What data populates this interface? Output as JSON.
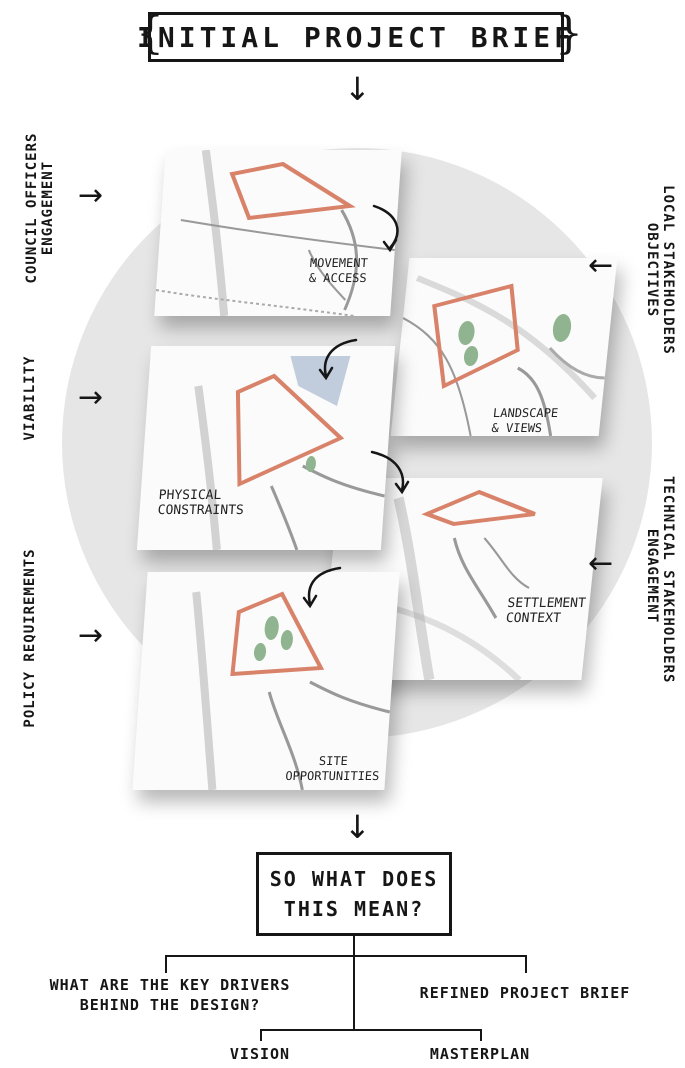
{
  "title": "INITIAL PROJECT BRIEF",
  "left_inputs": [
    {
      "id": "council",
      "lines": [
        "COUNCIL OFFICERS",
        "ENGAGEMENT"
      ]
    },
    {
      "id": "viability",
      "lines": [
        "VIABILITY"
      ]
    },
    {
      "id": "policy",
      "lines": [
        "POLICY REQUIREMENTS"
      ]
    }
  ],
  "right_inputs": [
    {
      "id": "local",
      "lines": [
        "LOCAL STAKEHOLDERS",
        "OBJECTIVES"
      ]
    },
    {
      "id": "technical",
      "lines": [
        "TECHNICAL STAKEHOLDERS",
        "ENGAGEMENT"
      ]
    }
  ],
  "sheets": [
    {
      "id": "movement",
      "label": "MOVEMENT\n& ACCESS"
    },
    {
      "id": "landscape",
      "label": "LANDSCAPE\n& VIEWS"
    },
    {
      "id": "physical",
      "label": "PHYSICAL\nCONSTRAINTS"
    },
    {
      "id": "settlement",
      "label": "SETTLEMENT\nCONTEXT"
    },
    {
      "id": "site",
      "label": "SITE\nOPPORTUNITIES"
    }
  ],
  "question": {
    "line1": "SO WHAT DOES",
    "line2": "THIS MEAN?"
  },
  "outcomes": {
    "left": [
      "WHAT ARE THE KEY DRIVERS",
      "BEHIND THE DESIGN?"
    ],
    "right": "REFINED PROJECT BRIEF",
    "vision": "VISION",
    "masterplan": "MASTERPLAN"
  },
  "colors": {
    "site_outline": "#d9826a",
    "ink": "#161616",
    "circle": "#e6e6e6",
    "trees": "#8fb48f",
    "water": "#7a95b5"
  }
}
